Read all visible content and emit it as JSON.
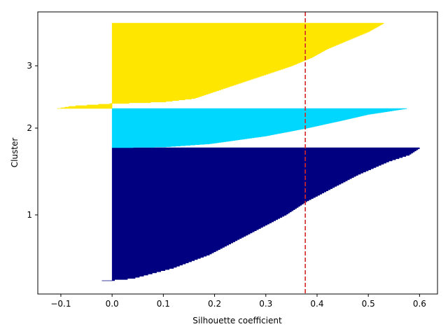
{
  "chart_data": {
    "type": "silhouette",
    "xlabel": "Silhouette coefficient",
    "ylabel": "Cluster",
    "xlim": [
      -0.145,
      0.635
    ],
    "x_ticks": [
      -0.1,
      0.0,
      0.1,
      0.2,
      0.3,
      0.4,
      0.5,
      0.6
    ],
    "x_tick_labels": [
      "−0.1",
      "0.0",
      "0.1",
      "0.2",
      "0.3",
      "0.4",
      "0.5",
      "0.6"
    ],
    "y_ticks": [
      1,
      2,
      3
    ],
    "y_tick_labels": [
      "1",
      "2",
      "3"
    ],
    "average_silhouette": 0.377,
    "reference_line_color": "#d62728",
    "clusters": [
      {
        "label": "1",
        "color": "#000080",
        "profile": [
          [
            0.0,
            -0.02
          ],
          [
            0.02,
            0.04
          ],
          [
            0.05,
            0.07
          ],
          [
            0.1,
            0.12
          ],
          [
            0.2,
            0.19
          ],
          [
            0.3,
            0.24
          ],
          [
            0.4,
            0.29
          ],
          [
            0.5,
            0.34
          ],
          [
            0.6,
            0.38
          ],
          [
            0.7,
            0.43
          ],
          [
            0.8,
            0.48
          ],
          [
            0.9,
            0.54
          ],
          [
            0.95,
            0.58
          ],
          [
            1.0,
            0.6
          ]
        ]
      },
      {
        "label": "2",
        "color": "#00d7ff",
        "profile": [
          [
            0.0,
            0.0
          ],
          [
            0.02,
            0.1
          ],
          [
            0.1,
            0.19
          ],
          [
            0.3,
            0.3
          ],
          [
            0.5,
            0.38
          ],
          [
            0.7,
            0.45
          ],
          [
            0.85,
            0.5
          ],
          [
            0.95,
            0.55
          ],
          [
            1.0,
            0.575
          ]
        ]
      },
      {
        "label": "3",
        "color": "#ffe600",
        "profile": [
          [
            0.0,
            -0.107
          ],
          [
            0.03,
            -0.08
          ],
          [
            0.06,
            0.0
          ],
          [
            0.08,
            0.1
          ],
          [
            0.12,
            0.16
          ],
          [
            0.2,
            0.2
          ],
          [
            0.3,
            0.25
          ],
          [
            0.4,
            0.3
          ],
          [
            0.5,
            0.35
          ],
          [
            0.6,
            0.39
          ],
          [
            0.7,
            0.42
          ],
          [
            0.8,
            0.46
          ],
          [
            0.9,
            0.5
          ],
          [
            1.0,
            0.53
          ]
        ]
      }
    ]
  }
}
